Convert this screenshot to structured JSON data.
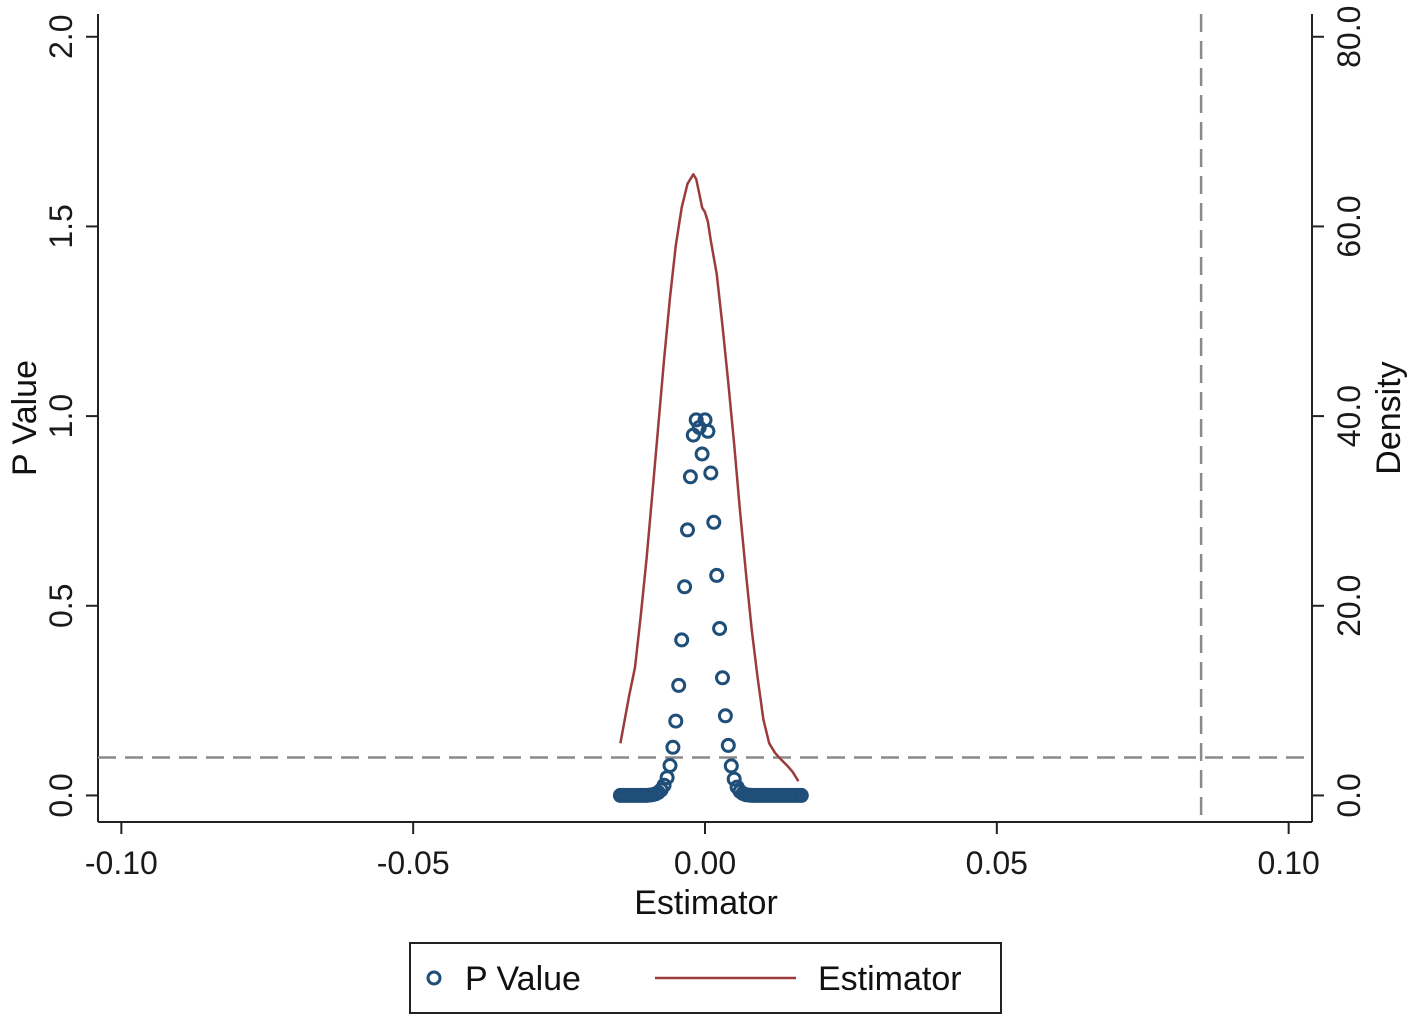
{
  "chart_data": {
    "type": "scatter",
    "xlabel": "Estimator",
    "ylabel_left": "P Value",
    "ylabel_right": "Density",
    "x_ticks": [
      "-0.10",
      "-0.05",
      "0.00",
      "0.05",
      "0.10"
    ],
    "x_tick_values": [
      -0.1,
      -0.05,
      0.0,
      0.05,
      0.1
    ],
    "y_left_ticks": [
      "0.0",
      "0.5",
      "1.0",
      "1.5",
      "2.0"
    ],
    "y_left_tick_values": [
      0.0,
      0.5,
      1.0,
      1.5,
      2.0
    ],
    "y_right_ticks": [
      "0.0",
      "20.0",
      "40.0",
      "60.0",
      "80.0"
    ],
    "y_right_tick_values": [
      0,
      20,
      40,
      60,
      80
    ],
    "xlim": [
      -0.104,
      0.104
    ],
    "ylim_left": [
      -0.07,
      2.06
    ],
    "ylim_right": [
      -2.8,
      82.4
    ],
    "reference_lines": {
      "horizontal_p_value": 0.1,
      "vertical_estimator": 0.085
    },
    "series": [
      {
        "name": "P Value",
        "kind": "scatter",
        "axis": "left",
        "color": "#1f4e79",
        "marker": "hollow-circle",
        "x": [
          -0.0145,
          -0.014,
          -0.0135,
          -0.013,
          -0.0125,
          -0.012,
          -0.0115,
          -0.011,
          -0.0105,
          -0.01,
          -0.0095,
          -0.009,
          -0.0085,
          -0.008,
          -0.0075,
          -0.007,
          -0.0065,
          -0.006,
          -0.0055,
          -0.005,
          -0.0045,
          -0.004,
          -0.0035,
          -0.003,
          -0.0025,
          -0.002,
          -0.0015,
          -0.001,
          -0.0005,
          0.0,
          0.0005,
          0.001,
          0.0015,
          0.002,
          0.0025,
          0.003,
          0.0035,
          0.004,
          0.0045,
          0.005,
          0.0055,
          0.006,
          0.0065,
          0.007,
          0.0075,
          0.008,
          0.0085,
          0.009,
          0.0095,
          0.01,
          0.0105,
          0.011,
          0.0115,
          0.012,
          0.0125,
          0.013,
          0.0135,
          0.014,
          0.0145,
          0.015,
          0.0155,
          0.016,
          0.0165
        ],
        "y": [
          0.0,
          0.0,
          0.0,
          0.0,
          0.0,
          0.0,
          0.0,
          0.0,
          0.0,
          0.0,
          0.001,
          0.002,
          0.004,
          0.008,
          0.015,
          0.027,
          0.047,
          0.079,
          0.127,
          0.196,
          0.29,
          0.41,
          0.55,
          0.7,
          0.84,
          0.95,
          0.99,
          0.97,
          0.9,
          0.99,
          0.96,
          0.85,
          0.72,
          0.58,
          0.44,
          0.31,
          0.21,
          0.132,
          0.078,
          0.043,
          0.022,
          0.011,
          0.005,
          0.002,
          0.001,
          0.0,
          0.0,
          0.0,
          0.0,
          0.0,
          0.0,
          0.0,
          0.0,
          0.0,
          0.0,
          0.0,
          0.0,
          0.0,
          0.0,
          0.0,
          0.0,
          0.0,
          0.0
        ]
      },
      {
        "name": "Estimator",
        "kind": "line",
        "axis": "right",
        "color": "#9b3b3b",
        "x": [
          -0.0145,
          -0.013,
          -0.012,
          -0.011,
          -0.01,
          -0.009,
          -0.008,
          -0.007,
          -0.006,
          -0.005,
          -0.004,
          -0.003,
          -0.002,
          -0.0015,
          -0.001,
          -0.0005,
          0.0,
          0.0005,
          0.001,
          0.002,
          0.003,
          0.004,
          0.005,
          0.006,
          0.007,
          0.008,
          0.009,
          0.01,
          0.011,
          0.012,
          0.013,
          0.014,
          0.015,
          0.016
        ],
        "y": [
          5.5,
          10.5,
          13.5,
          19.0,
          25.0,
          32.0,
          39.0,
          46.0,
          52.5,
          58.0,
          62.0,
          64.5,
          65.5,
          65.0,
          63.5,
          62.0,
          61.5,
          60.5,
          58.5,
          55.0,
          49.5,
          43.5,
          37.0,
          30.0,
          23.5,
          17.5,
          12.5,
          8.0,
          5.5,
          4.5,
          3.8,
          3.2,
          2.5,
          1.5
        ]
      }
    ],
    "legend": {
      "position": "bottom-center",
      "entries": [
        "P Value",
        "Estimator"
      ]
    }
  }
}
